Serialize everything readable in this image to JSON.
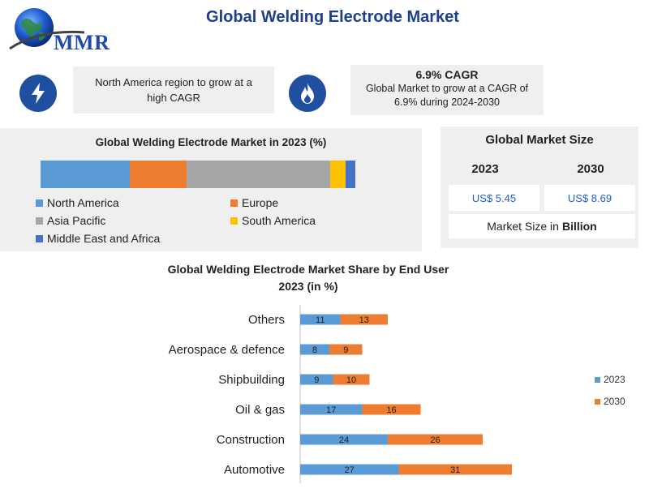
{
  "header": {
    "title": "Global Welding Electrode Market",
    "logo_text": "MMR"
  },
  "highlights": {
    "region_note": "North America region to grow at a high CAGR",
    "cagr_title": "6.9% CAGR",
    "cagr_text": "Global Market to grow at a CAGR of 6.9% during 2024-2030"
  },
  "market_size": {
    "title": "Global Market Size",
    "year_a": "2023",
    "year_b": "2030",
    "value_a": "US$ 5.45",
    "value_b": "US$ 8.69",
    "unit_prefix": "Market Size in",
    "unit_bold": "Billion"
  },
  "colors": {
    "north_america": "#5b9bd5",
    "europe": "#ed7d31",
    "asia_pacific": "#a5a5a5",
    "south_america": "#ffc000",
    "mea": "#4472c4",
    "icon_bg": "#1f4f9e",
    "title_blue": "#1e3f8c"
  },
  "chart_data": [
    {
      "type": "bar",
      "stacked": true,
      "orientation": "horizontal",
      "title": "Global Welding Electrode Market in 2023 (%)",
      "series": [
        {
          "name": "North America",
          "values": [
            28
          ]
        },
        {
          "name": "Europe",
          "values": [
            18
          ]
        },
        {
          "name": "Asia Pacific",
          "values": [
            45
          ]
        },
        {
          "name": "South America",
          "values": [
            5
          ]
        },
        {
          "name": "Middle East and Africa",
          "values": [
            3
          ]
        }
      ],
      "legend_placement": "bottom"
    },
    {
      "type": "bar",
      "stacked": true,
      "orientation": "horizontal",
      "title": "Global Welding Electrode Market Share by End User 2023 (in %)",
      "categories": [
        "Others",
        "Aerospace & defence",
        "Shipbuilding",
        "Oil & gas",
        "Construction",
        "Automotive"
      ],
      "series": [
        {
          "name": "2023",
          "values": [
            11,
            8,
            9,
            17,
            24,
            27
          ]
        },
        {
          "name": "2030",
          "values": [
            13,
            9,
            10,
            16,
            26,
            31
          ]
        }
      ],
      "data_labels": true,
      "legend_placement": "right"
    }
  ]
}
